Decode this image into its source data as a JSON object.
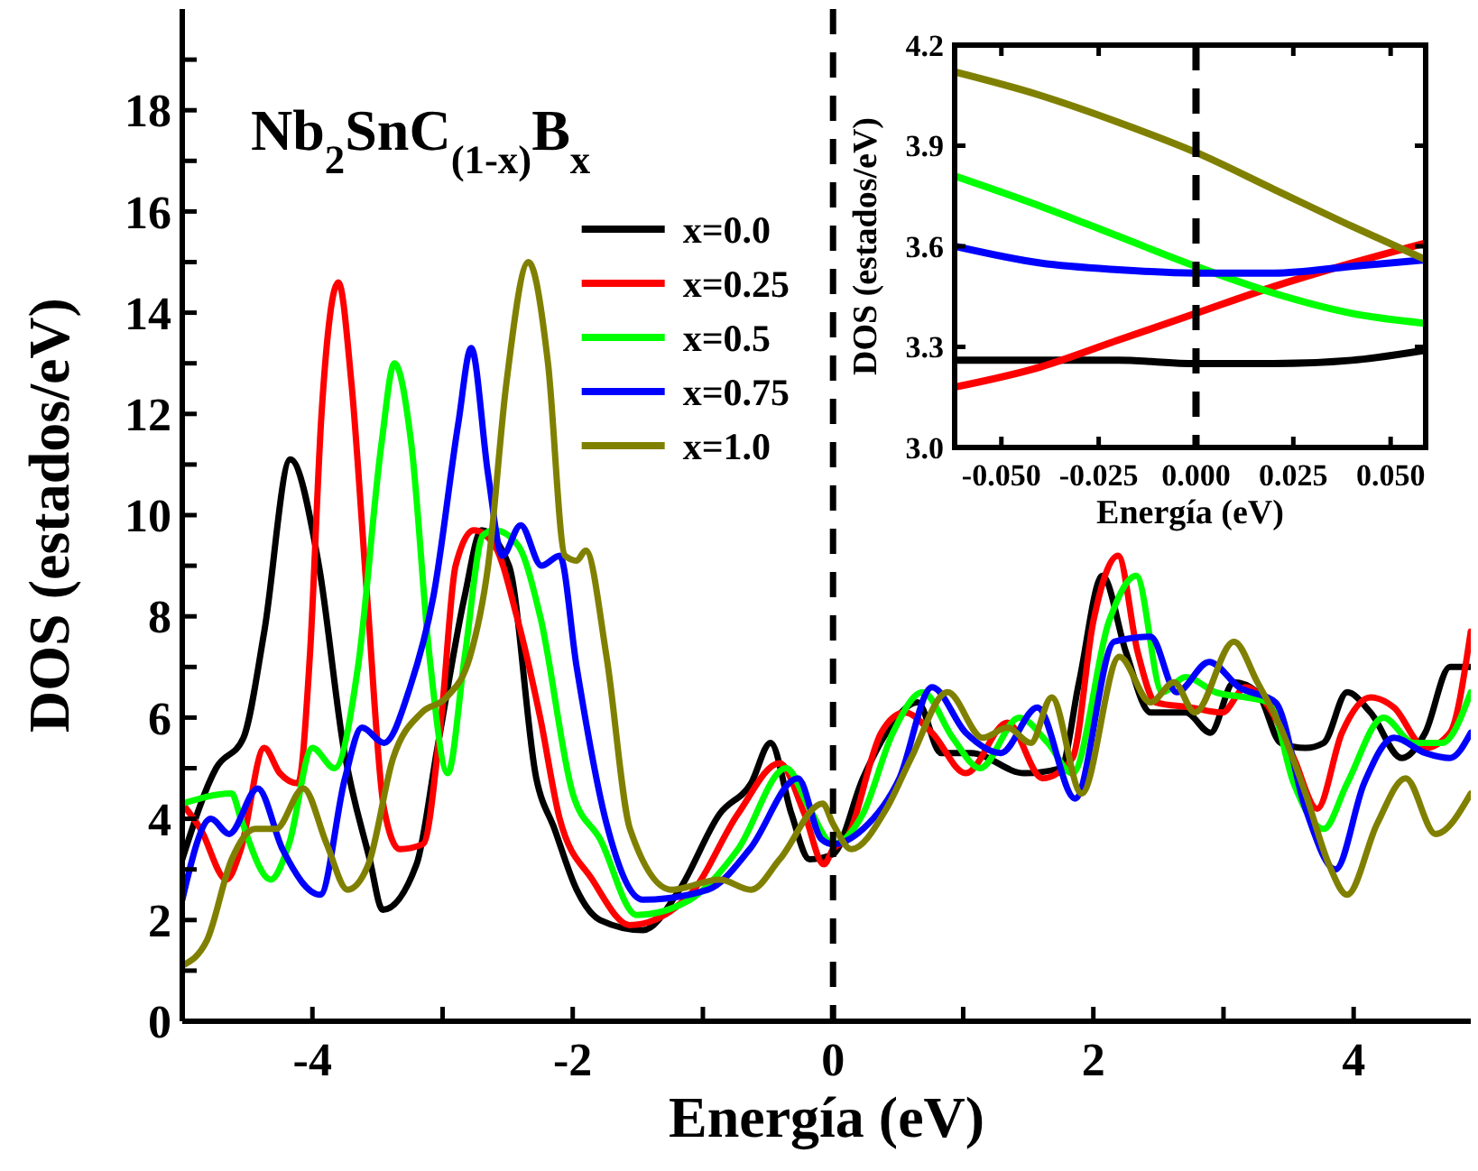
{
  "chart_data": [
    {
      "type": "line",
      "title": "Nb$_{2}$SnC$_{(1-x)}$B$_{x}$",
      "xlabel": "Energía (eV)",
      "ylabel": "DOS (estados/eV)",
      "xlim": [
        -5,
        4.9
      ],
      "ylim": [
        0,
        20
      ],
      "xticks": [
        {
          "value": -5,
          "label": null
        },
        -4,
        {
          "value": -3,
          "label": null
        },
        -2,
        {
          "value": -1,
          "label": null
        },
        0,
        {
          "value": 1,
          "label": null
        },
        2,
        {
          "value": 3,
          "label": null
        },
        4
      ],
      "yticks": [
        0,
        {
          "value": 1,
          "label": null
        },
        2,
        {
          "value": 3,
          "label": null
        },
        4,
        {
          "value": 5,
          "label": null
        },
        6,
        {
          "value": 7,
          "label": null
        },
        8,
        {
          "value": 9,
          "label": null
        },
        10,
        {
          "value": 11,
          "label": null
        },
        12,
        {
          "value": 13,
          "label": null
        },
        14,
        {
          "value": 15,
          "label": null
        },
        16,
        {
          "value": 17,
          "label": null
        },
        18,
        {
          "value": 19,
          "label": null
        }
      ],
      "legend": "top",
      "line_style": "solid",
      "ref_lines": [
        {
          "axis": "x",
          "value": 0,
          "color": "#000000",
          "line_style": "dashed"
        }
      ],
      "series": [
        {
          "name": "x=0.0",
          "color": "#000000",
          "x": [
            -5,
            -4.74,
            -4.53,
            -4.37,
            -4.17,
            -3.95,
            -3.76,
            -3.56,
            -3.46,
            -3.2,
            -3.04,
            -2.83,
            -2.7,
            -2.49,
            -2.28,
            -2.14,
            -1.97,
            -1.79,
            -1.46,
            -1.18,
            -0.87,
            -0.63,
            -0.48,
            -0.32,
            -0.18,
            0,
            0.23,
            0.41,
            0.65,
            0.83,
            1.06,
            1.47,
            1.75,
            1.89,
            2.07,
            2.25,
            2.44,
            2.71,
            2.9,
            3.08,
            3.26,
            3.44,
            3.63,
            3.77,
            3.95,
            4.13,
            4.37,
            4.55,
            4.74,
            4.9
          ],
          "values": [
            3.2,
            5.0,
            5.6,
            7.7,
            11.1,
            9.0,
            5.4,
            3.2,
            2.2,
            3.1,
            5.4,
            8.4,
            9.7,
            9.0,
            4.8,
            3.8,
            2.6,
            2.0,
            1.8,
            2.6,
            4.1,
            4.7,
            5.5,
            4.1,
            3.2,
            3.3,
            4.8,
            5.7,
            6.3,
            5.3,
            5.3,
            4.9,
            5.0,
            6.7,
            8.8,
            7.3,
            6.1,
            6.1,
            5.7,
            6.7,
            6.5,
            5.5,
            5.4,
            5.5,
            6.5,
            6.1,
            5.2,
            5.7,
            7.0,
            7.0
          ]
        },
        {
          "name": "x=0.25",
          "color": "#ff0000",
          "x": [
            -5,
            -4.86,
            -4.66,
            -4.55,
            -4.37,
            -4.25,
            -4.11,
            -4.02,
            -3.93,
            -3.8,
            -3.7,
            -3.58,
            -3.45,
            -3.33,
            -3.15,
            -3.01,
            -2.9,
            -2.76,
            -2.6,
            -2.43,
            -2.25,
            -2.1,
            -1.85,
            -1.56,
            -1.1,
            -0.73,
            -0.41,
            -0.22,
            -0.07,
            0,
            0.1,
            0.37,
            0.55,
            0.76,
            1.02,
            1.34,
            1.61,
            1.84,
            2.0,
            2.19,
            2.34,
            2.48,
            2.75,
            2.99,
            3.17,
            3.35,
            3.54,
            3.72,
            3.91,
            4.13,
            4.31,
            4.55,
            4.74,
            4.9
          ],
          "values": [
            4.3,
            3.8,
            2.8,
            3.4,
            5.4,
            4.9,
            4.7,
            7.2,
            12.0,
            14.6,
            12.6,
            8.4,
            4.2,
            3.4,
            3.5,
            6.0,
            9.0,
            9.7,
            9.4,
            8.0,
            6.0,
            4.0,
            2.8,
            1.9,
            2.5,
            4.1,
            5.1,
            4.1,
            3.1,
            3.4,
            3.6,
            5.7,
            6.1,
            5.7,
            4.9,
            5.9,
            4.8,
            5.2,
            7.9,
            9.2,
            7.3,
            6.3,
            6.2,
            6.1,
            6.6,
            6.2,
            5.2,
            4.2,
            5.7,
            6.4,
            6.2,
            5.4,
            5.7,
            7.7
          ]
        },
        {
          "name": "x=0.5",
          "color": "#00ff00",
          "x": [
            -5,
            -4.62,
            -4.55,
            -4.32,
            -4.18,
            -4.0,
            -3.83,
            -3.65,
            -3.47,
            -3.37,
            -3.24,
            -3.1,
            -2.96,
            -2.83,
            -2.69,
            -2.6,
            -2.42,
            -2.25,
            -2.0,
            -1.79,
            -1.51,
            -1.1,
            -0.73,
            -0.36,
            -0.18,
            0,
            0.23,
            0.46,
            0.69,
            0.92,
            1.13,
            1.43,
            1.65,
            1.84,
            2.12,
            2.33,
            2.53,
            2.71,
            2.94,
            3.17,
            3.35,
            3.54,
            3.77,
            3.95,
            4.23,
            4.46,
            4.68,
            4.9
          ],
          "values": [
            4.3,
            4.5,
            4.0,
            2.8,
            3.5,
            5.4,
            5.0,
            7.0,
            11.4,
            13.0,
            11.4,
            7.2,
            4.9,
            7.2,
            9.6,
            9.7,
            9.4,
            8.0,
            4.5,
            3.6,
            2.1,
            2.4,
            3.4,
            5.0,
            4.2,
            3.5,
            4.1,
            5.7,
            6.5,
            5.6,
            5.0,
            6.0,
            5.5,
            4.9,
            7.9,
            8.8,
            6.5,
            6.8,
            6.5,
            6.4,
            6.3,
            4.7,
            3.8,
            4.7,
            6.0,
            5.5,
            5.5,
            6.5
          ]
        },
        {
          "name": "x=0.75",
          "color": "#0000ff",
          "x": [
            -5,
            -4.78,
            -4.64,
            -4.42,
            -4.23,
            -3.94,
            -3.75,
            -3.62,
            -3.45,
            -3.25,
            -3.07,
            -2.88,
            -2.78,
            -2.65,
            -2.54,
            -2.4,
            -2.24,
            -2.1,
            -1.97,
            -1.74,
            -1.46,
            -0.96,
            -0.64,
            -0.27,
            -0.09,
            0,
            0.23,
            0.51,
            0.76,
            1.02,
            1.29,
            1.57,
            1.86,
            2.16,
            2.44,
            2.64,
            2.89,
            3.12,
            3.4,
            3.63,
            3.86,
            4.08,
            4.31,
            4.55,
            4.74,
            4.9
          ],
          "values": [
            2.4,
            4.0,
            3.7,
            4.6,
            3.4,
            2.5,
            4.8,
            5.8,
            5.5,
            6.6,
            8.4,
            11.8,
            13.3,
            10.8,
            9.2,
            9.8,
            9.0,
            9.2,
            7.0,
            3.9,
            2.4,
            2.6,
            3.4,
            4.8,
            3.6,
            3.5,
            3.8,
            4.8,
            6.6,
            5.7,
            5.3,
            6.2,
            4.4,
            7.5,
            7.6,
            6.5,
            7.1,
            6.6,
            6.3,
            4.2,
            3.0,
            4.7,
            5.6,
            5.3,
            5.2,
            5.7
          ]
        },
        {
          "name": "x=1.0",
          "color": "#808000",
          "x": [
            -5,
            -4.81,
            -4.62,
            -4.44,
            -4.28,
            -4.07,
            -3.89,
            -3.73,
            -3.57,
            -3.38,
            -3.16,
            -2.97,
            -2.79,
            -2.65,
            -2.51,
            -2.34,
            -2.19,
            -2.06,
            -1.97,
            -1.9,
            -1.74,
            -1.56,
            -1.24,
            -0.87,
            -0.63,
            -0.41,
            -0.08,
            0,
            0.14,
            0.41,
            0.6,
            0.88,
            1.15,
            1.34,
            1.52,
            1.68,
            1.91,
            2.2,
            2.44,
            2.62,
            2.78,
            3.08,
            3.26,
            3.44,
            3.63,
            3.81,
            3.95,
            4.18,
            4.4,
            4.63,
            4.9
          ],
          "values": [
            1.1,
            1.6,
            3.2,
            3.8,
            3.8,
            4.6,
            3.5,
            2.6,
            3.1,
            5.2,
            6.1,
            6.4,
            7.2,
            9.0,
            12.6,
            15.0,
            13.0,
            9.2,
            9.1,
            9.3,
            7.2,
            3.8,
            2.6,
            2.8,
            2.6,
            3.2,
            4.3,
            3.9,
            3.4,
            4.2,
            5.2,
            6.5,
            5.6,
            5.8,
            5.5,
            6.4,
            4.5,
            7.2,
            6.3,
            6.7,
            6.1,
            7.5,
            6.7,
            5.8,
            4.5,
            3.1,
            2.5,
            3.9,
            4.8,
            3.7,
            4.5
          ]
        }
      ]
    },
    {
      "type": "line",
      "xlabel": "Energía (eV)",
      "ylabel": "DOS (estados/eV)",
      "xlim": [
        -0.062,
        0.059
      ],
      "ylim": [
        3.0,
        4.2
      ],
      "xticks": [
        {
          "value": -0.05,
          "label": "-0.050"
        },
        {
          "value": -0.025,
          "label": "-0.025"
        },
        {
          "value": 0,
          "label": "0.000"
        },
        {
          "value": 0.025,
          "label": "0.025"
        },
        {
          "value": 0.05,
          "label": "0.050"
        }
      ],
      "yticks": [
        {
          "value": 3.0,
          "label": "3.0"
        },
        3.3,
        3.6,
        3.9,
        {
          "value": 4.2,
          "label": "4.2"
        }
      ],
      "line_style": "solid",
      "ref_lines": [
        {
          "axis": "x",
          "value": 0,
          "color": "#000000",
          "line_style": "dashed"
        }
      ],
      "series": [
        {
          "color": "#000000",
          "x": [
            -0.062,
            -0.04,
            -0.02,
            0,
            0.02,
            0.04,
            0.059
          ],
          "values": [
            3.26,
            3.26,
            3.26,
            3.25,
            3.25,
            3.26,
            3.29
          ]
        },
        {
          "color": "#ff0000",
          "x": [
            -0.062,
            -0.04,
            -0.02,
            0,
            0.02,
            0.04,
            0.059
          ],
          "values": [
            3.18,
            3.24,
            3.32,
            3.4,
            3.48,
            3.55,
            3.61
          ]
        },
        {
          "color": "#00ff00",
          "x": [
            -0.062,
            -0.04,
            -0.02,
            0,
            0.02,
            0.04,
            0.059
          ],
          "values": [
            3.81,
            3.72,
            3.63,
            3.54,
            3.46,
            3.4,
            3.37
          ]
        },
        {
          "color": "#0000ff",
          "x": [
            -0.062,
            -0.04,
            -0.02,
            0,
            0.02,
            0.04,
            0.059
          ],
          "values": [
            3.6,
            3.55,
            3.53,
            3.52,
            3.52,
            3.54,
            3.56
          ]
        },
        {
          "color": "#808000",
          "x": [
            -0.062,
            -0.04,
            -0.02,
            0,
            0.02,
            0.04,
            0.059
          ],
          "values": [
            4.12,
            4.05,
            3.97,
            3.88,
            3.77,
            3.66,
            3.56
          ]
        }
      ]
    }
  ]
}
